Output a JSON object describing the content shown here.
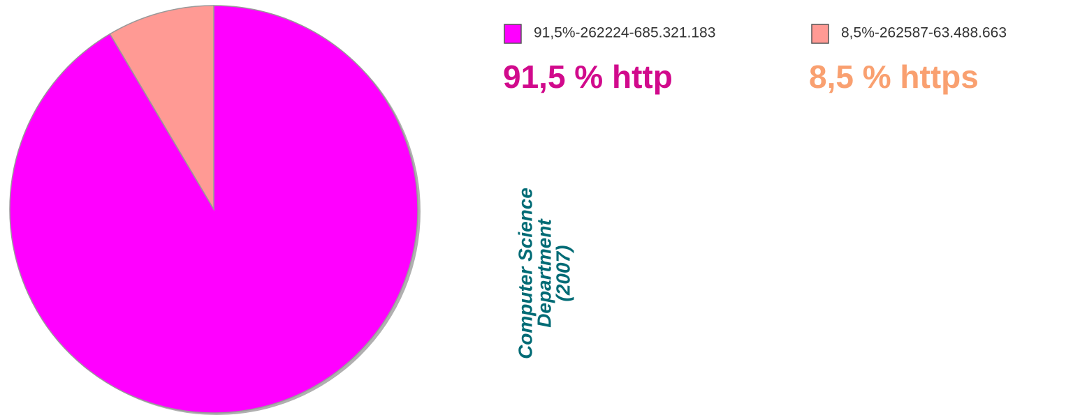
{
  "chart_data": {
    "type": "pie",
    "categories": [
      "91,5%-262224-685.321.183",
      "8,5%-262587-63.488.663"
    ],
    "values": [
      91.5,
      8.5
    ],
    "colors": [
      "#ff00ff",
      "#ff9a94"
    ],
    "annotations": [
      {
        "text": "91,5 % http",
        "color": "#d10a8c"
      },
      {
        "text": "8,5 % https",
        "color": "#f9a070"
      }
    ],
    "side_note": {
      "lines": [
        "Computer Science",
        "Department",
        "(2007)"
      ],
      "color": "#006b75"
    }
  }
}
